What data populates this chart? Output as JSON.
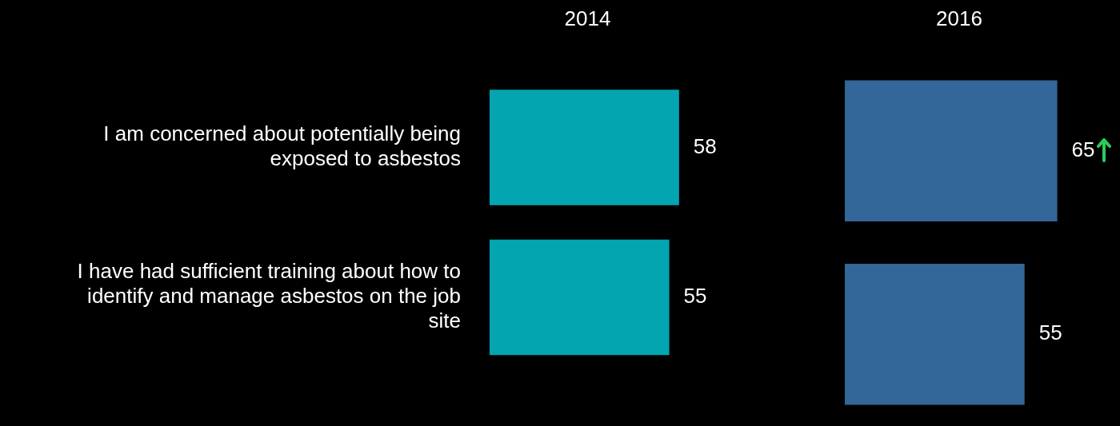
{
  "chart_data": [
    {
      "type": "bar",
      "orientation": "horizontal",
      "title": "2014",
      "categories": [
        "I am concerned about potentially being exposed to asbestos",
        "I have had sufficient training about how to identify and manage asbestos on the job site"
      ],
      "values": [
        58,
        55
      ],
      "color": "#03a5b0",
      "data_labels": true,
      "tick_labels": "y"
    },
    {
      "type": "bar",
      "orientation": "horizontal",
      "title": "2016",
      "categories": [
        null,
        null
      ],
      "values": [
        65,
        55
      ],
      "color": "#336699",
      "data_labels": true,
      "tick_labels": false
    }
  ]
}
